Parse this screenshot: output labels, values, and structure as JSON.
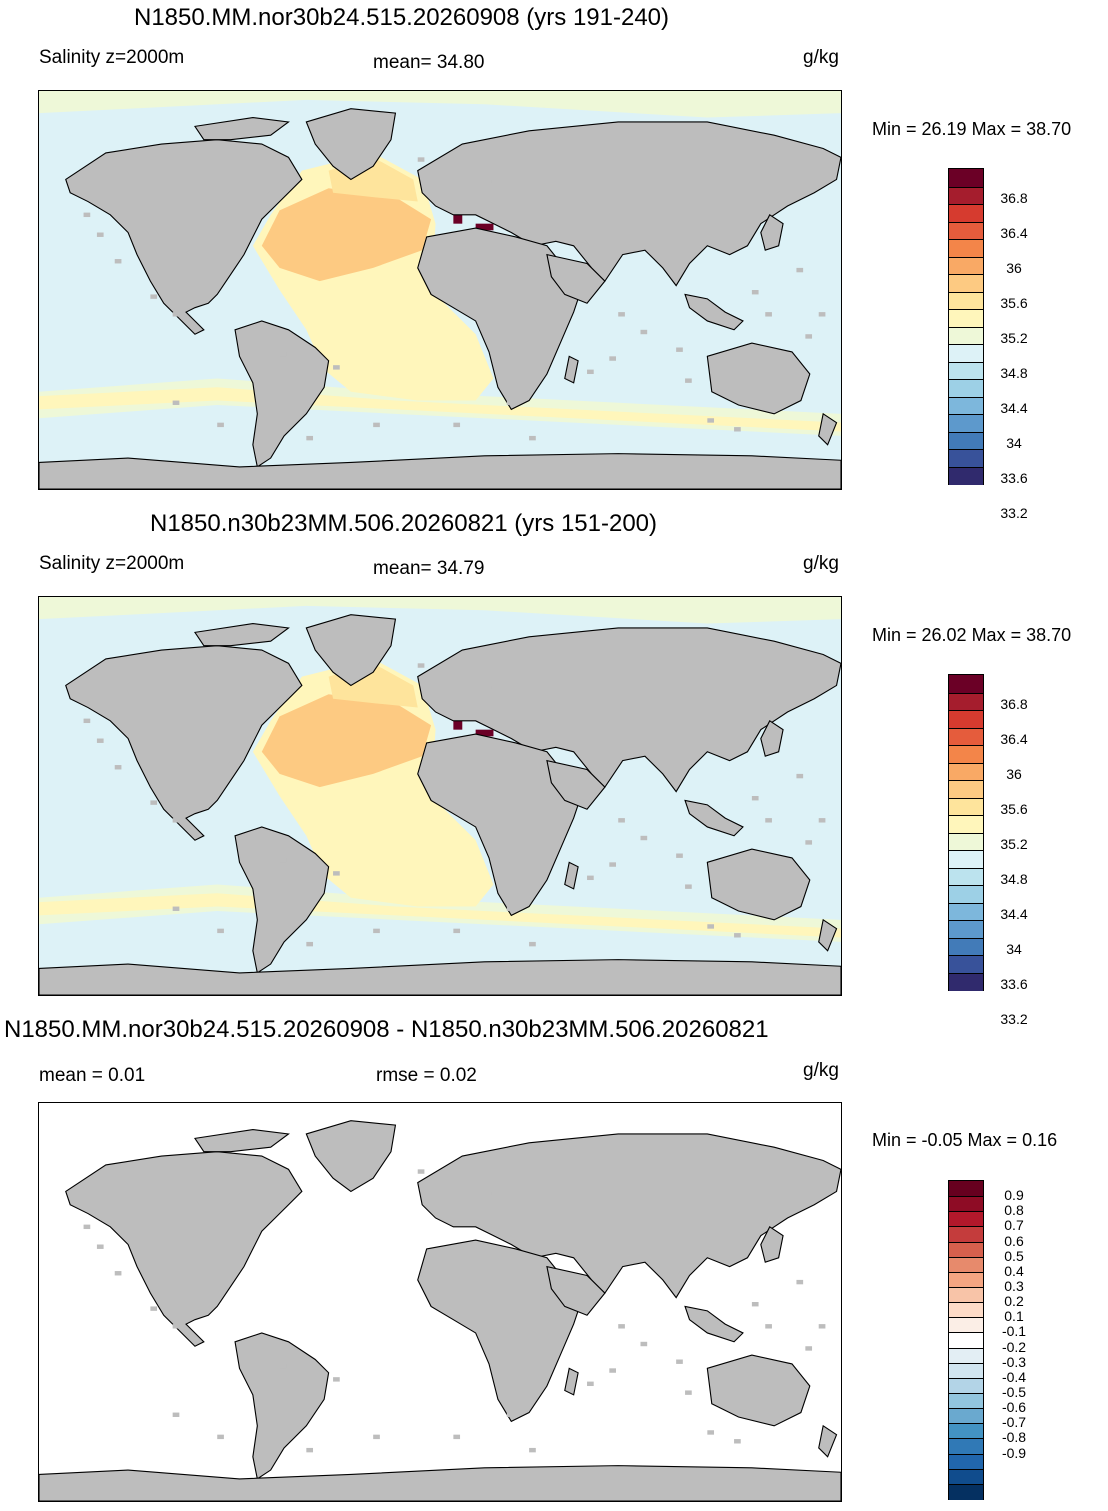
{
  "panels": [
    {
      "title": "N1850.MM.nor30b24.515.20260908 (yrs 191-240)",
      "left_label": "Salinity z=2000m",
      "center_label": "mean=  34.80",
      "units": "g/kg",
      "minmax": "Min =  26.19 Max =  38.70",
      "colorbar": {
        "colors": [
          "#6b0026",
          "#a51d2d",
          "#d63b2f",
          "#e55c3c",
          "#f38549",
          "#f9a965",
          "#fdca82",
          "#fee49c",
          "#fff6bb",
          "#eef8d8",
          "#ddf2f7",
          "#bce3ee",
          "#9dd0e6",
          "#7db7dc",
          "#5d99cc",
          "#427bb8",
          "#38529a",
          "#302a6d"
        ],
        "labels": [
          "36.8",
          "36.4",
          "36",
          "35.6",
          "35.2",
          "34.8",
          "34.4",
          "34",
          "33.6",
          "33.2"
        ]
      },
      "field": "salinity"
    },
    {
      "title": "N1850.n30b23MM.506.20260821 (yrs 151-200)",
      "left_label": "Salinity z=2000m",
      "center_label": "mean=  34.79",
      "units": "g/kg",
      "minmax": "Min =  26.02 Max =  38.70",
      "colorbar": {
        "colors": [
          "#6b0026",
          "#a51d2d",
          "#d63b2f",
          "#e55c3c",
          "#f38549",
          "#f9a965",
          "#fdca82",
          "#fee49c",
          "#fff6bb",
          "#eef8d8",
          "#ddf2f7",
          "#bce3ee",
          "#9dd0e6",
          "#7db7dc",
          "#5d99cc",
          "#427bb8",
          "#38529a",
          "#302a6d"
        ],
        "labels": [
          "36.8",
          "36.4",
          "36",
          "35.6",
          "35.2",
          "34.8",
          "34.4",
          "34",
          "33.6",
          "33.2"
        ]
      },
      "field": "salinity"
    },
    {
      "title": "N1850.MM.nor30b24.515.20260908 - N1850.n30b23MM.506.20260821",
      "left_label": "mean =    0.01",
      "center_label": "rmse =    0.02",
      "units": "g/kg",
      "minmax": "Min =  -0.05 Max =   0.16",
      "colorbar": {
        "colors": [
          "#67001f",
          "#8e0c25",
          "#b2182b",
          "#c43c3c",
          "#d6604d",
          "#e78a6c",
          "#f4a582",
          "#f8c4a8",
          "#fddbc7",
          "#fbeee6",
          "#ffffff",
          "#e3eef4",
          "#d1e5f0",
          "#b3d4e7",
          "#92c5de",
          "#6aa9cf",
          "#4393c3",
          "#3079b6",
          "#2166ac",
          "#104c8d",
          "#053061"
        ],
        "labels": [
          "0.9",
          "0.8",
          "0.7",
          "0.6",
          "0.5",
          "0.4",
          "0.3",
          "0.2",
          "0.1",
          "-0.1",
          "-0.2",
          "-0.3",
          "-0.4",
          "-0.5",
          "-0.6",
          "-0.7",
          "-0.8",
          "-0.9"
        ]
      },
      "field": "difference"
    }
  ],
  "colors": {
    "land": "#bdbdbd",
    "coast": "#000000",
    "ocean_background": "#ddf2f7",
    "band_yellow": "#fff6bb",
    "band_green": "#eef8d8",
    "atlantic_orange": "#fdca82",
    "atlantic_light_orange": "#fee49c",
    "med_dark": "#6b0026",
    "diff_ocean": "#ffffff"
  }
}
